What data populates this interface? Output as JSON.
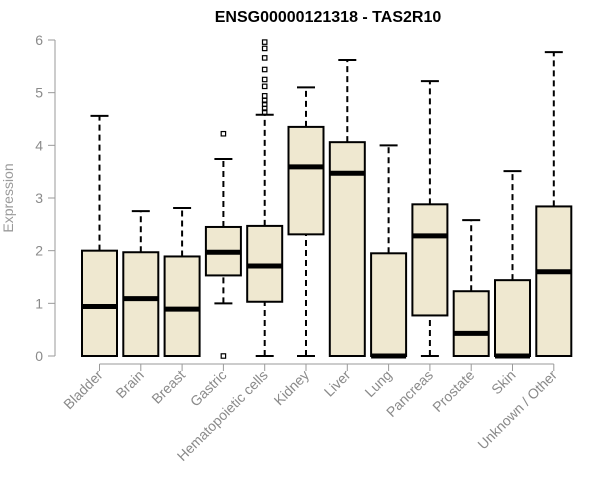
{
  "chart_data": {
    "type": "boxplot",
    "title": "ENSG00000121318 - TAS2R10",
    "xlabel": "",
    "ylabel": "Expression",
    "ylim": [
      0,
      6
    ],
    "yticks": [
      0,
      1,
      2,
      3,
      4,
      5,
      6
    ],
    "box_color": "#efe8d0",
    "categories": [
      "Bladder",
      "Brain",
      "Breast",
      "Gastric",
      "Hematopoietic cells",
      "Kidney",
      "Liver",
      "Lung",
      "Pancreas",
      "Prostate",
      "Skin",
      "Unknown / Other"
    ],
    "boxes": [
      {
        "min": 0,
        "q1": 0,
        "median": 0.94,
        "q3": 2.0,
        "max": 4.56,
        "outliers": []
      },
      {
        "min": 0,
        "q1": 0,
        "median": 1.09,
        "q3": 1.97,
        "max": 2.75,
        "outliers": []
      },
      {
        "min": 0,
        "q1": 0,
        "median": 0.89,
        "q3": 1.89,
        "max": 2.81,
        "outliers": []
      },
      {
        "min": 1.0,
        "q1": 1.53,
        "median": 1.97,
        "q3": 2.45,
        "max": 3.74,
        "outliers": [
          4.22,
          0.0
        ]
      },
      {
        "min": 0,
        "q1": 1.03,
        "median": 1.71,
        "q3": 2.47,
        "max": 4.58,
        "outliers": [
          5.96,
          5.84,
          5.66,
          5.44,
          5.25,
          5.12,
          4.94,
          4.85,
          4.78,
          4.7,
          4.63
        ]
      },
      {
        "min": 0,
        "q1": 2.31,
        "median": 3.59,
        "q3": 4.35,
        "max": 5.1,
        "outliers": []
      },
      {
        "min": 0,
        "q1": 0,
        "median": 3.47,
        "q3": 4.06,
        "max": 5.62,
        "outliers": []
      },
      {
        "min": 0,
        "q1": 0,
        "median": 0.0,
        "q3": 1.95,
        "max": 4.0,
        "outliers": []
      },
      {
        "min": 0,
        "q1": 0.77,
        "median": 2.28,
        "q3": 2.88,
        "max": 5.22,
        "outliers": []
      },
      {
        "min": 0,
        "q1": 0,
        "median": 0.43,
        "q3": 1.23,
        "max": 2.58,
        "outliers": []
      },
      {
        "min": 0,
        "q1": 0,
        "median": 0.0,
        "q3": 1.44,
        "max": 3.51,
        "outliers": []
      },
      {
        "min": 0,
        "q1": 0,
        "median": 1.6,
        "q3": 2.84,
        "max": 5.77,
        "outliers": []
      }
    ]
  }
}
